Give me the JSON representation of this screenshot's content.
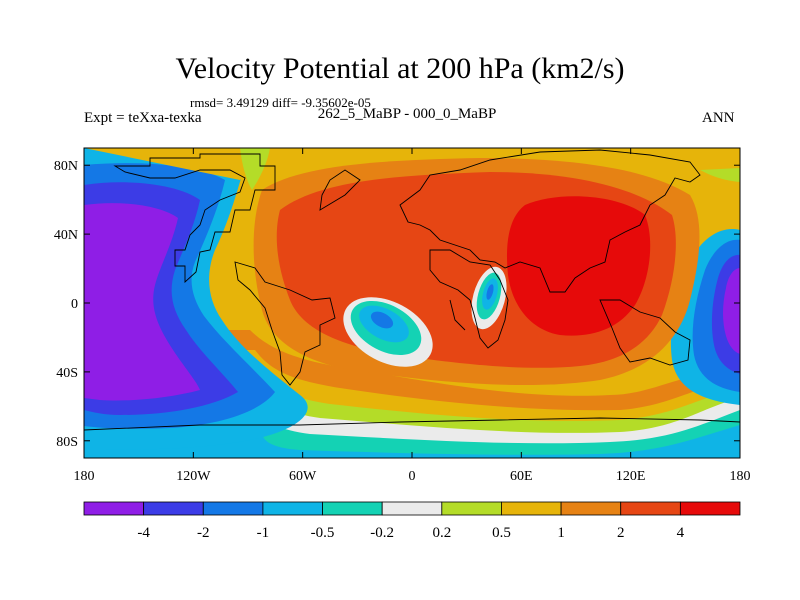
{
  "chart_data": {
    "type": "heatmap",
    "title": "Velocity Potential at 200 hPa (km2/s)",
    "stats_text": "rmsd= 3.49129 diff= -9.35602e-05",
    "left_label": "Expt = teXxa-texka",
    "center_label": "262_5_MaBP - 000_0_MaBP",
    "right_label": "ANN",
    "x_range": [
      -180,
      180
    ],
    "y_range": [
      -90,
      90
    ],
    "x_ticks": [
      {
        "value": -180,
        "label": "180"
      },
      {
        "value": -120,
        "label": "120W"
      },
      {
        "value": -60,
        "label": "60W"
      },
      {
        "value": 0,
        "label": "0"
      },
      {
        "value": 60,
        "label": "60E"
      },
      {
        "value": 120,
        "label": "120E"
      },
      {
        "value": 180,
        "label": "180"
      }
    ],
    "y_ticks": [
      {
        "value": 80,
        "label": "80N"
      },
      {
        "value": 40,
        "label": "40N"
      },
      {
        "value": 0,
        "label": "0"
      },
      {
        "value": -40,
        "label": "40S"
      },
      {
        "value": -80,
        "label": "80S"
      }
    ],
    "colorbar": {
      "levels": [
        "-4",
        "-2",
        "-1",
        "-0.5",
        "-0.2",
        "0.2",
        "0.5",
        "1",
        "2",
        "4"
      ],
      "colors": [
        "#8f1ee6",
        "#3c3ce6",
        "#1478e6",
        "#0fb4e6",
        "#14d2b4",
        "#ebebeb",
        "#b4dc28",
        "#e6b40a",
        "#e68214",
        "#e64614",
        "#e60a0a"
      ]
    },
    "regions": [
      {
        "name": "strong-negative-west-pacific",
        "level": "< -4",
        "center": [
          -150,
          5
        ],
        "radius": [
          30,
          48
        ]
      },
      {
        "name": "negative-east-edge",
        "level": "< -4",
        "center": [
          180,
          10
        ],
        "radius": [
          14,
          30
        ]
      },
      {
        "name": "negative-south-atlantic-cell",
        "level": "-1 to -0.5",
        "center": [
          -18,
          -20
        ],
        "radius": [
          13,
          8
        ]
      },
      {
        "name": "negative-east-africa-cell",
        "level": "-1 to -0.5",
        "center": [
          44,
          2
        ],
        "radius": [
          4,
          10
        ]
      },
      {
        "name": "positive-eurasia-maximum",
        "level": "2 to 4",
        "center": [
          65,
          25
        ],
        "radius": [
          70,
          45
        ]
      },
      {
        "name": "positive-north-america",
        "level": "2 to 4",
        "center": [
          -45,
          40
        ],
        "radius": [
          40,
          20
        ]
      },
      {
        "name": "positive-south-america",
        "level": "2 to 4",
        "center": [
          -60,
          -25
        ],
        "radius": [
          20,
          20
        ]
      }
    ]
  }
}
